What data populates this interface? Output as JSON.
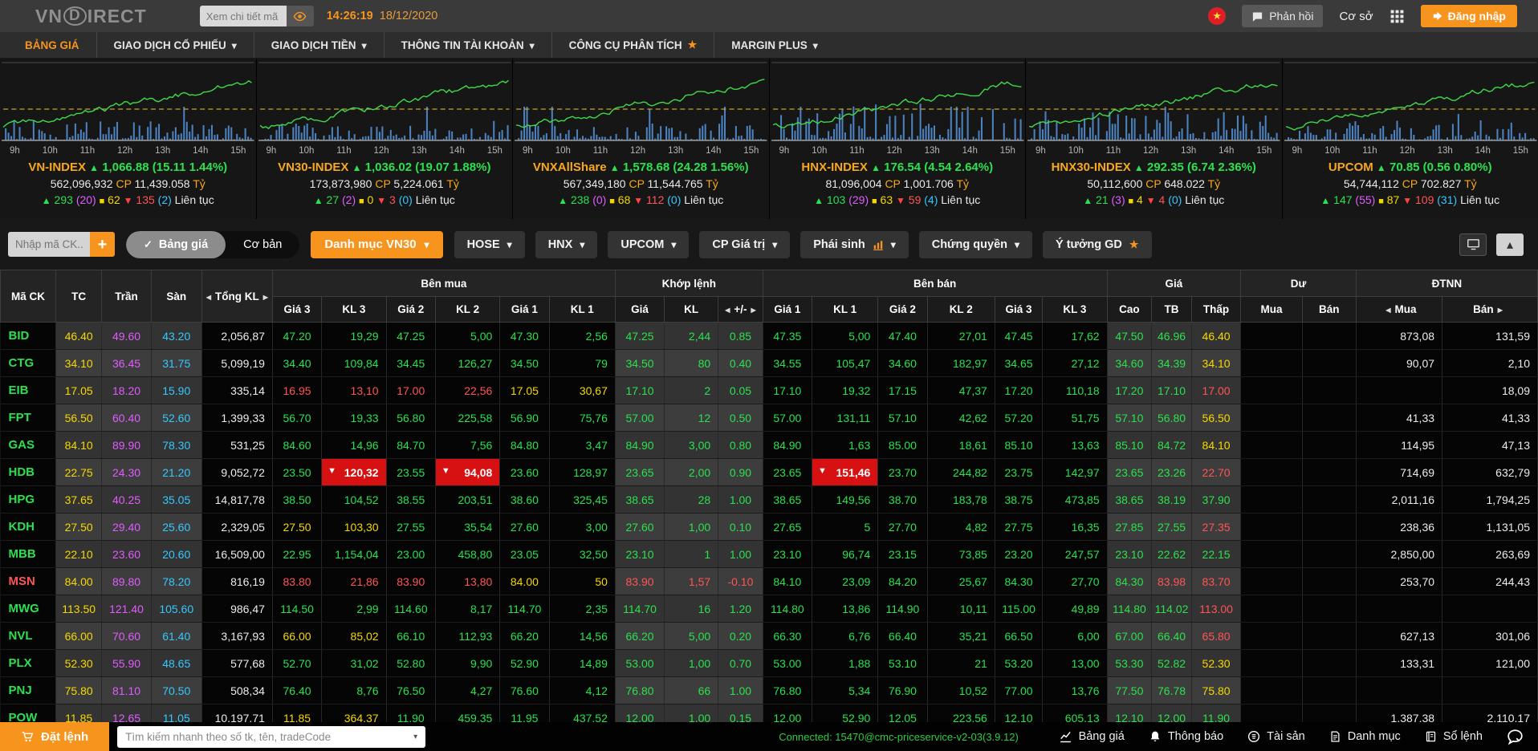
{
  "header": {
    "logo_vn": "VN",
    "logo_d": "D",
    "logo_rest": "IRECT",
    "search_placeholder": "Xem chi tiết mã",
    "time": "14:26:19",
    "date": "18/12/2020",
    "feedback_label": "Phản hồi",
    "environment_label": "Cơ sở",
    "login_label": "Đăng nhập"
  },
  "nav": {
    "items": [
      {
        "label": "BẢNG GIÁ",
        "active": true
      },
      {
        "label": "GIAO DỊCH CỔ PHIẾU",
        "caret": true
      },
      {
        "label": "GIAO DỊCH TIỀN",
        "caret": true
      },
      {
        "label": "THÔNG TIN TÀI KHOẢN",
        "caret": true
      },
      {
        "label": "CÔNG CỤ PHÂN TÍCH",
        "star": true
      },
      {
        "label": "MARGIN PLUS",
        "caret": true
      }
    ]
  },
  "indices": [
    {
      "name": "VN-INDEX",
      "value": "1,066.88",
      "change": "(15.11 1.44%)",
      "shares": "562,096,932",
      "shares_unit": "CP",
      "turnover": "11,439.058",
      "turnover_unit": "Tỷ",
      "advancers": "293",
      "ceiling": "(20)",
      "unchanged": "62",
      "decliners": "135",
      "floor": "(2)",
      "session": "Liên tục",
      "hours": [
        "9h",
        "10h",
        "11h",
        "12h",
        "13h",
        "14h",
        "15h"
      ]
    },
    {
      "name": "VN30-INDEX",
      "value": "1,036.02",
      "change": "(19.07 1.88%)",
      "shares": "173,873,980",
      "shares_unit": "CP",
      "turnover": "5,224.061",
      "turnover_unit": "Tỷ",
      "advancers": "27",
      "ceiling": "(2)",
      "unchanged": "0",
      "decliners": "3",
      "floor": "(0)",
      "session": "Liên tục",
      "hours": [
        "9h",
        "10h",
        "11h",
        "12h",
        "13h",
        "14h",
        "15h"
      ]
    },
    {
      "name": "VNXAllShare",
      "value": "1,578.68",
      "change": "(24.28 1.56%)",
      "shares": "567,349,180",
      "shares_unit": "CP",
      "turnover": "11,544.765",
      "turnover_unit": "Tỷ",
      "advancers": "238",
      "ceiling": "(0)",
      "unchanged": "68",
      "decliners": "112",
      "floor": "(0)",
      "session": "Liên tục",
      "hours": [
        "9h",
        "10h",
        "11h",
        "12h",
        "13h",
        "14h",
        "15h"
      ]
    },
    {
      "name": "HNX-INDEX",
      "value": "176.54",
      "change": "(4.54 2.64%)",
      "shares": "81,096,004",
      "shares_unit": "CP",
      "turnover": "1,001.706",
      "turnover_unit": "Tỷ",
      "advancers": "103",
      "ceiling": "(29)",
      "unchanged": "63",
      "decliners": "59",
      "floor": "(4)",
      "session": "Liên tục",
      "hours": [
        "9h",
        "10h",
        "11h",
        "12h",
        "13h",
        "14h",
        "15h"
      ]
    },
    {
      "name": "HNX30-INDEX",
      "value": "292.35",
      "change": "(6.74 2.36%)",
      "shares": "50,112,600",
      "shares_unit": "CP",
      "turnover": "648.022",
      "turnover_unit": "Tỷ",
      "advancers": "21",
      "ceiling": "(3)",
      "unchanged": "4",
      "decliners": "4",
      "floor": "(0)",
      "session": "Liên tục",
      "hours": [
        "9h",
        "10h",
        "11h",
        "12h",
        "13h",
        "14h",
        "15h"
      ]
    },
    {
      "name": "UPCOM",
      "value": "70.85",
      "change": "(0.56 0.80%)",
      "shares": "54,744,112",
      "shares_unit": "CP",
      "turnover": "702.827",
      "turnover_unit": "Tỷ",
      "advancers": "147",
      "ceiling": "(55)",
      "unchanged": "87",
      "decliners": "109",
      "floor": "(31)",
      "session": "Liên tục",
      "hours": [
        "9h",
        "10h",
        "11h",
        "12h",
        "13h",
        "14h",
        "15h"
      ]
    }
  ],
  "filterbar": {
    "symbol_input_placeholder": "Nhập mã CK...",
    "view_selected": "Bảng giá",
    "view_other": "Cơ bản",
    "portfolio_dropdown": "Danh mục VN30",
    "tabs": [
      {
        "label": "HOSE",
        "caret": true
      },
      {
        "label": "HNX",
        "caret": true
      },
      {
        "label": "UPCOM",
        "caret": true
      },
      {
        "label": "CP Giá trị",
        "caret": true
      },
      {
        "label": "Phái sinh",
        "caret": true,
        "chart_icon": true
      },
      {
        "label": "Chứng quyền",
        "caret": true
      },
      {
        "label": "Ý tưởng GD",
        "star": true
      }
    ]
  },
  "table": {
    "groups": {
      "sym": "Mã CK",
      "tc": "TC",
      "tran": "Trần",
      "san": "Sàn",
      "vol": "Tổng KL",
      "buy": "Bên mua",
      "matched": "Khớp lệnh",
      "sell": "Bên bán",
      "price": "Giá",
      "residual": "Dư",
      "foreign": "ĐTNN"
    },
    "sub": {
      "g3": "Giá 3",
      "k3": "KL 3",
      "g2": "Giá 2",
      "k2": "KL 2",
      "g1": "Giá 1",
      "k1": "KL 1",
      "g": "Giá",
      "k": "KL",
      "chg": "+/-",
      "cao": "Cao",
      "tb": "TB",
      "thap": "Thấp",
      "mua": "Mua",
      "ban": "Bán"
    },
    "rows": [
      {
        "sym": "BID",
        "sym_color": "g",
        "cells": [
          "46.40|y",
          "49.60|m",
          "43.20|c",
          "2,056,87|w",
          "47.20|g",
          "19,29|g",
          "47.25|g",
          "5,00|g",
          "47.30|g",
          "2,56|g",
          "47.25|g",
          "2,44|g",
          "0.85|g",
          "47.35|g",
          "5,00|g",
          "47.40|g",
          "27,01|g",
          "47.45|g",
          "17,62|g",
          "47.50|g",
          "46.96|g",
          "46.40|y",
          "",
          "",
          "873,08|w",
          "131,59|w"
        ]
      },
      {
        "sym": "CTG",
        "sym_color": "g",
        "cells": [
          "34.10|y",
          "36.45|m",
          "31.75|c",
          "5,099,19|w",
          "34.40|g",
          "109,84|g",
          "34.45|g",
          "126,27|g",
          "34.50|g",
          "79|g",
          "34.50|g",
          "80|g",
          "0.40|g",
          "34.55|g",
          "105,47|g",
          "34.60|g",
          "182,97|g",
          "34.65|g",
          "27,12|g",
          "34.60|g",
          "34.39|g",
          "34.10|y",
          "",
          "",
          "90,07|w",
          "2,10|w"
        ]
      },
      {
        "sym": "EIB",
        "sym_color": "g",
        "cells": [
          "17.05|y",
          "18.20|m",
          "15.90|c",
          "335,14|w",
          "16.95|r",
          "13,10|r",
          "17.00|r",
          "22,56|r",
          "17.05|y",
          "30,67|y",
          "17.10|g",
          "2|g",
          "0.05|g",
          "17.10|g",
          "19,32|g",
          "17.15|g",
          "47,37|g",
          "17.20|g",
          "110,18|g",
          "17.20|g",
          "17.10|g",
          "17.00|r",
          "",
          "",
          "",
          "18,09|w"
        ]
      },
      {
        "sym": "FPT",
        "sym_color": "g",
        "cells": [
          "56.50|y",
          "60.40|m",
          "52.60|c",
          "1,399,33|w",
          "56.70|g",
          "19,33|g",
          "56.80|g",
          "225,58|g",
          "56.90|g",
          "75,76|g",
          "57.00|g",
          "12|g",
          "0.50|g",
          "57.00|g",
          "131,11|g",
          "57.10|g",
          "42,62|g",
          "57.20|g",
          "51,75|g",
          "57.10|g",
          "56.80|g",
          "56.50|y",
          "",
          "",
          "41,33|w",
          "41,33|w"
        ]
      },
      {
        "sym": "GAS",
        "sym_color": "g",
        "cells": [
          "84.10|y",
          "89.90|m",
          "78.30|c",
          "531,25|w",
          "84.60|g",
          "14,96|g",
          "84.70|g",
          "7,56|g",
          "84.80|g",
          "3,47|g",
          "84.90|g",
          "3,00|g",
          "0.80|g",
          "84.90|g",
          "1,63|g",
          "85.00|g",
          "18,61|g",
          "85.10|g",
          "13,63|g",
          "85.10|g",
          "84.72|g",
          "84.10|y",
          "",
          "",
          "114,95|w",
          "47,13|w"
        ]
      },
      {
        "sym": "HDB",
        "sym_color": "g",
        "cells": [
          "22.75|y",
          "24.30|m",
          "21.20|c",
          "9,052,72|w",
          "23.50|g",
          "120,32|R",
          "23.55|g",
          "94,08|R",
          "23.60|g",
          "128,97|g",
          "23.65|g",
          "2,00|g",
          "0.90|g",
          "23.65|g",
          "151,46|R",
          "23.70|g",
          "244,82|g",
          "23.75|g",
          "142,97|g",
          "23.65|g",
          "23.26|g",
          "22.70|r",
          "",
          "",
          "714,69|w",
          "632,79|w"
        ]
      },
      {
        "sym": "HPG",
        "sym_color": "g",
        "cells": [
          "37.65|y",
          "40.25|m",
          "35.05|c",
          "14,817,78|w",
          "38.50|g",
          "104,52|g",
          "38.55|g",
          "203,51|g",
          "38.60|g",
          "325,45|g",
          "38.65|g",
          "28|g",
          "1.00|g",
          "38.65|g",
          "149,56|g",
          "38.70|g",
          "183,78|g",
          "38.75|g",
          "473,85|g",
          "38.65|g",
          "38.19|g",
          "37.90|g",
          "",
          "",
          "2,011,16|w",
          "1,794,25|w"
        ]
      },
      {
        "sym": "KDH",
        "sym_color": "g",
        "cells": [
          "27.50|y",
          "29.40|m",
          "25.60|c",
          "2,329,05|w",
          "27.50|y",
          "103,30|y",
          "27.55|g",
          "35,54|g",
          "27.60|g",
          "3,00|g",
          "27.60|g",
          "1,00|g",
          "0.10|g",
          "27.65|g",
          "5|g",
          "27.70|g",
          "4,82|g",
          "27.75|g",
          "16,35|g",
          "27.85|g",
          "27.55|g",
          "27.35|r",
          "",
          "",
          "238,36|w",
          "1,131,05|w"
        ]
      },
      {
        "sym": "MBB",
        "sym_color": "g",
        "cells": [
          "22.10|y",
          "23.60|m",
          "20.60|c",
          "16,509,00|w",
          "22.95|g",
          "1,154,04|g",
          "23.00|g",
          "458,80|g",
          "23.05|g",
          "32,50|g",
          "23.10|g",
          "1|g",
          "1.00|g",
          "23.10|g",
          "96,74|g",
          "23.15|g",
          "73,85|g",
          "23.20|g",
          "247,57|g",
          "23.10|g",
          "22.62|g",
          "22.15|g",
          "",
          "",
          "2,850,00|w",
          "263,69|w"
        ]
      },
      {
        "sym": "MSN",
        "sym_color": "r",
        "cells": [
          "84.00|y",
          "89.80|m",
          "78.20|c",
          "816,19|w",
          "83.80|r",
          "21,86|r",
          "83.90|r",
          "13,80|r",
          "84.00|y",
          "50|y",
          "83.90|r",
          "1,57|r",
          "-0.10|r",
          "84.10|g",
          "23,09|g",
          "84.20|g",
          "25,67|g",
          "84.30|g",
          "27,70|g",
          "84.30|g",
          "83.98|r",
          "83.70|r",
          "",
          "",
          "253,70|w",
          "244,43|w"
        ]
      },
      {
        "sym": "MWG",
        "sym_color": "g",
        "cells": [
          "113.50|y",
          "121.40|m",
          "105.60|c",
          "986,47|w",
          "114.50|g",
          "2,99|g",
          "114.60|g",
          "8,17|g",
          "114.70|g",
          "2,35|g",
          "114.70|g",
          "16|g",
          "1.20|g",
          "114.80|g",
          "13,86|g",
          "114.90|g",
          "10,11|g",
          "115.00|g",
          "49,89|g",
          "114.80|g",
          "114.02|g",
          "113.00|r",
          "",
          "",
          "",
          ""
        ]
      },
      {
        "sym": "NVL",
        "sym_color": "g",
        "cells": [
          "66.00|y",
          "70.60|m",
          "61.40|c",
          "3,167,93|w",
          "66.00|y",
          "85,02|y",
          "66.10|g",
          "112,93|g",
          "66.20|g",
          "14,56|g",
          "66.20|g",
          "5,00|g",
          "0.20|g",
          "66.30|g",
          "6,76|g",
          "66.40|g",
          "35,21|g",
          "66.50|g",
          "6,00|g",
          "67.00|g",
          "66.40|g",
          "65.80|r",
          "",
          "",
          "627,13|w",
          "301,06|w"
        ]
      },
      {
        "sym": "PLX",
        "sym_color": "g",
        "cells": [
          "52.30|y",
          "55.90|m",
          "48.65|c",
          "577,68|w",
          "52.70|g",
          "31,02|g",
          "52.80|g",
          "9,90|g",
          "52.90|g",
          "14,89|g",
          "53.00|g",
          "1,00|g",
          "0.70|g",
          "53.00|g",
          "1,88|g",
          "53.10|g",
          "21|g",
          "53.20|g",
          "13,00|g",
          "53.30|g",
          "52.82|g",
          "52.30|y",
          "",
          "",
          "133,31|w",
          "121,00|w"
        ]
      },
      {
        "sym": "PNJ",
        "sym_color": "g",
        "cells": [
          "75.80|y",
          "81.10|m",
          "70.50|c",
          "508,34|w",
          "76.40|g",
          "8,76|g",
          "76.50|g",
          "4,27|g",
          "76.60|g",
          "4,12|g",
          "76.80|g",
          "66|g",
          "1.00|g",
          "76.80|g",
          "5,34|g",
          "76.90|g",
          "10,52|g",
          "77.00|g",
          "13,76|g",
          "77.50|g",
          "76.78|g",
          "75.80|y",
          "",
          "",
          "",
          ""
        ]
      },
      {
        "sym": "POW",
        "sym_color": "g",
        "cells": [
          "11.85|y",
          "12.65|m",
          "11.05|c",
          "10,197,71|w",
          "11.85|y",
          "364,37|y",
          "11.90|g",
          "459,35|g",
          "11.95|g",
          "437,52|g",
          "12.00|g",
          "1,00|g",
          "0.15|g",
          "12.00|g",
          "52,90|g",
          "12.05|g",
          "223,56|g",
          "12.10|g",
          "605,13|g",
          "12.10|g",
          "12.00|g",
          "11.90|g",
          "",
          "",
          "1,387,38|w",
          "2,110,17|w"
        ]
      }
    ]
  },
  "footer": {
    "order_label": "Đặt lệnh",
    "search_placeholder": "Tìm kiếm nhanh theo số tk, tên, tradeCode",
    "connection": "Connected: 15470@cmc-priceservice-v2-03(3.9.12)",
    "links": [
      {
        "label": "Bảng giá",
        "icon": "chart-line-icon"
      },
      {
        "label": "Thông báo",
        "icon": "bell-icon"
      },
      {
        "label": "Tài sản",
        "icon": "assets-icon"
      },
      {
        "label": "Danh mục",
        "icon": "portfolio-icon"
      },
      {
        "label": "Sổ lệnh",
        "icon": "order-book-icon"
      }
    ]
  },
  "colors": {
    "accent": "#f7941d",
    "up": "#2ce04e",
    "down": "#ff5555",
    "reference": "#f5d800",
    "ceiling": "#e05cff",
    "floor": "#35c8ff"
  }
}
